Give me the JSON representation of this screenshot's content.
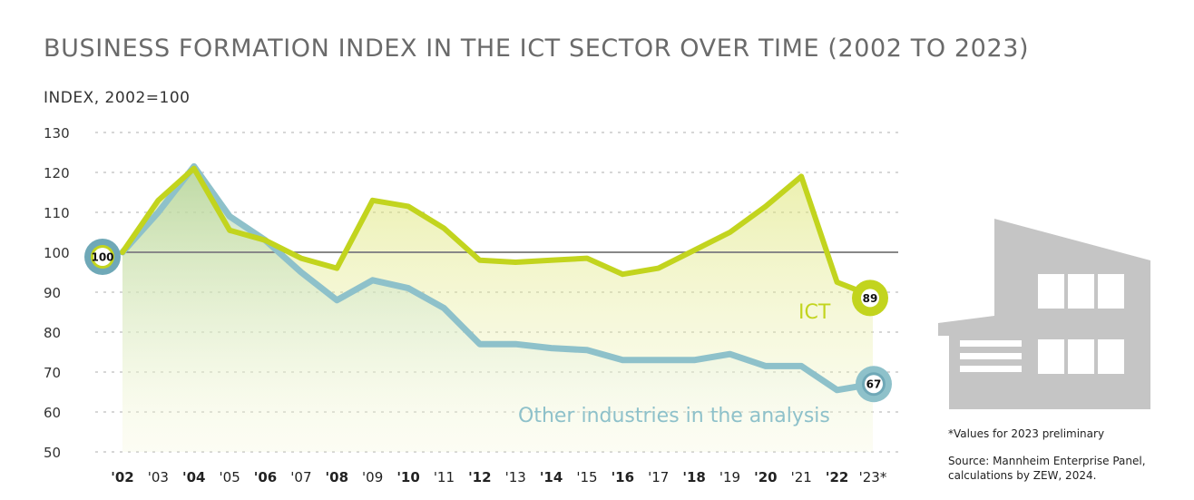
{
  "title": "BUSINESS FORMATION INDEX IN THE ICT SECTOR OVER TIME (2002 TO 2023)",
  "notes": {
    "preliminary": "*Values for 2023 preliminary",
    "source_line1": "Source: Mannheim Enterprise Panel,",
    "source_line2": "calculations by ZEW, 2024."
  },
  "chart_data": {
    "type": "area",
    "ylabel": "INDEX, 2002=100",
    "ylim": [
      50,
      130
    ],
    "yticks": [
      50,
      60,
      70,
      80,
      90,
      100,
      110,
      120,
      130
    ],
    "reference_line": 100,
    "categories": [
      "'02",
      "'03",
      "'04",
      "'05",
      "'06",
      "'07",
      "'08",
      "'09",
      "'10",
      "'11",
      "'12",
      "'13",
      "'14",
      "'15",
      "'16",
      "'17",
      "'18",
      "'19",
      "'20",
      "'21",
      "'22",
      "'23*"
    ],
    "bold_categories": [
      "'02",
      "'04",
      "'06",
      "'08",
      "'10",
      "'12",
      "'14",
      "'16",
      "'18",
      "'20",
      "'22"
    ],
    "series": [
      {
        "name": "ICT",
        "color": "#c2d41e",
        "values": [
          100,
          113,
          121,
          105.5,
          103,
          98.5,
          96,
          113,
          111.5,
          106,
          98,
          97.5,
          98,
          98.5,
          94.5,
          96,
          100.5,
          105,
          111.5,
          119,
          92.5,
          89
        ],
        "end_label": "89"
      },
      {
        "name": "Other industries in the analysis",
        "color": "#8ec1ca",
        "values": [
          100,
          110,
          121.5,
          109,
          103,
          95,
          88,
          93,
          91,
          86,
          77,
          77,
          76,
          75.5,
          73,
          73,
          73,
          74.5,
          71.5,
          71.5,
          65.5,
          67
        ],
        "end_label": "67"
      }
    ],
    "start_label": "100",
    "grid": true
  },
  "colors": {
    "ict": "#c2d41e",
    "other": "#8ec1ca",
    "other_dark": "#6fa8b7",
    "building": "#c5c5c5",
    "window": "#ffffff",
    "gridline": "#bdbdbd",
    "refline": "#888888"
  },
  "icons": [
    "building-icon"
  ]
}
